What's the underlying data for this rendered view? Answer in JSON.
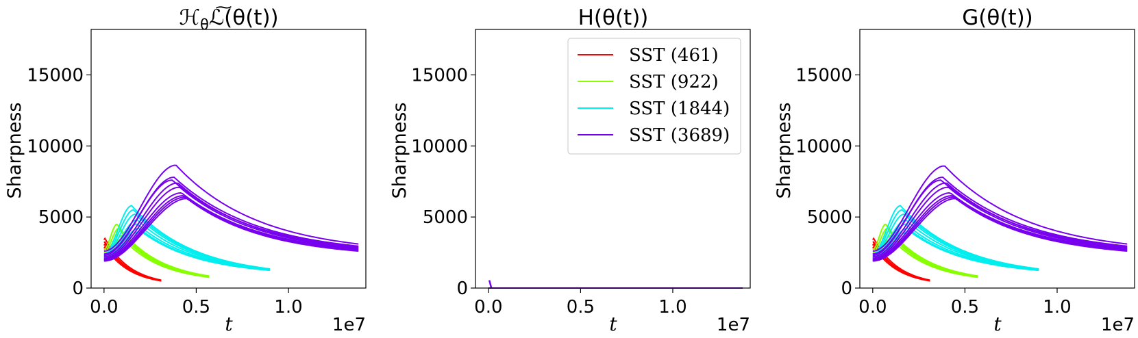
{
  "colors": {
    "SST (461)": "#ff0000",
    "SST (922)": "#88ff00",
    "SST (1844)": "#00eeee",
    "SST (3689)": "#7700ee"
  },
  "chart_data": [
    {
      "type": "line",
      "title": "ℋθℒ̃(θ(t))",
      "title_parts": {
        "H": "ℋ",
        "sub": "θ",
        "L": "ℒ",
        "tilde": "~",
        "rest": "(θ(t))"
      },
      "xlabel": "t",
      "ylabel": "Sharpness",
      "x_offset_text": "1e7",
      "xlim": [
        -0.07,
        1.42
      ],
      "ylim": [
        0,
        18200
      ],
      "xticks": [
        0.0,
        0.5,
        1.0
      ],
      "xtick_labels": [
        "0.0",
        "0.5",
        "1.0"
      ],
      "yticks": [
        0,
        5000,
        10000,
        15000
      ],
      "ytick_labels": [
        "0",
        "5000",
        "10000",
        "15000"
      ],
      "legend": false,
      "series": [
        {
          "name": "SST (461)",
          "t_end": 0.31,
          "final": 550,
          "runs": [
            {
              "start": 3400,
              "peak": 3500,
              "peak_t": 0.005,
              "final": 560
            },
            {
              "start": 3200,
              "peak": 3250,
              "peak_t": 0.005,
              "final": 520
            },
            {
              "start": 3000,
              "peak": 3100,
              "peak_t": 0.005,
              "final": 540
            },
            {
              "start": 2800,
              "peak": 2900,
              "peak_t": 0.005,
              "final": 500
            }
          ]
        },
        {
          "name": "SST (922)",
          "t_end": 0.57,
          "runs": [
            {
              "start": 2700,
              "peak": 4500,
              "peak_t": 0.07,
              "final": 850
            },
            {
              "start": 2500,
              "peak": 4200,
              "peak_t": 0.08,
              "final": 820
            },
            {
              "start": 2300,
              "peak": 4000,
              "peak_t": 0.09,
              "final": 800
            },
            {
              "start": 2200,
              "peak": 3700,
              "peak_t": 0.1,
              "final": 780
            },
            {
              "start": 2100,
              "peak": 3500,
              "peak_t": 0.1,
              "final": 760
            }
          ]
        },
        {
          "name": "SST (1844)",
          "t_end": 0.9,
          "runs": [
            {
              "start": 2400,
              "peak": 5800,
              "peak_t": 0.15,
              "final": 1350
            },
            {
              "start": 2300,
              "peak": 5500,
              "peak_t": 0.16,
              "final": 1330
            },
            {
              "start": 2200,
              "peak": 5200,
              "peak_t": 0.17,
              "final": 1300
            },
            {
              "start": 2100,
              "peak": 4800,
              "peak_t": 0.18,
              "final": 1300
            },
            {
              "start": 2000,
              "peak": 4500,
              "peak_t": 0.18,
              "final": 1280
            },
            {
              "start": 1950,
              "peak": 4200,
              "peak_t": 0.19,
              "final": 1250
            },
            {
              "start": 1900,
              "peak": 4000,
              "peak_t": 0.2,
              "final": 1250
            }
          ]
        },
        {
          "name": "SST (3689)",
          "t_end": 1.38,
          "runs": [
            {
              "start": 2600,
              "peak": 8650,
              "peak_t": 0.39,
              "final": 3100
            },
            {
              "start": 2400,
              "peak": 7800,
              "peak_t": 0.38,
              "final": 2950
            },
            {
              "start": 2300,
              "peak": 7600,
              "peak_t": 0.37,
              "final": 2900
            },
            {
              "start": 2200,
              "peak": 7400,
              "peak_t": 0.4,
              "final": 2850
            },
            {
              "start": 2100,
              "peak": 7100,
              "peak_t": 0.41,
              "final": 2800
            },
            {
              "start": 2050,
              "peak": 6700,
              "peak_t": 0.42,
              "final": 2750
            },
            {
              "start": 2000,
              "peak": 6500,
              "peak_t": 0.43,
              "final": 2700
            },
            {
              "start": 1950,
              "peak": 6400,
              "peak_t": 0.44,
              "final": 2650
            },
            {
              "start": 1900,
              "peak": 6300,
              "peak_t": 0.45,
              "final": 2600
            }
          ]
        }
      ]
    },
    {
      "type": "line",
      "title": "H(θ(t))",
      "xlabel": "t",
      "ylabel": "Sharpness",
      "x_offset_text": "1e7",
      "xlim": [
        -0.07,
        1.42
      ],
      "ylim": [
        0,
        18200
      ],
      "xticks": [
        0.0,
        0.5,
        1.0
      ],
      "xtick_labels": [
        "0.0",
        "0.5",
        "1.0"
      ],
      "yticks": [
        0,
        5000,
        10000,
        15000
      ],
      "ytick_labels": [
        "0",
        "5000",
        "10000",
        "15000"
      ],
      "legend": true,
      "legend_position": "top-right",
      "legend_entries": [
        "SST (461)",
        "SST (922)",
        "SST (1844)",
        "SST (3689)"
      ],
      "series": [
        {
          "name": "SST (461)",
          "t_end": 0.31,
          "spike": 0,
          "runs": [
            {
              "start": 0,
              "peak": 0,
              "peak_t": 0.0,
              "final": 0
            }
          ]
        },
        {
          "name": "SST (922)",
          "t_end": 0.57,
          "spike": 0,
          "runs": [
            {
              "start": 0,
              "peak": 0,
              "peak_t": 0.0,
              "final": 0
            }
          ]
        },
        {
          "name": "SST (1844)",
          "t_end": 0.9,
          "spike": 0,
          "runs": [
            {
              "start": 0,
              "peak": 0,
              "peak_t": 0.0,
              "final": 0
            }
          ]
        },
        {
          "name": "SST (3689)",
          "t_end": 1.38,
          "spike": 550,
          "runs": [
            {
              "start": 0,
              "peak": 0,
              "peak_t": 0.0,
              "final": 0
            }
          ]
        }
      ]
    },
    {
      "type": "line",
      "title": "G(θ(t))",
      "xlabel": "t",
      "ylabel": "Sharpness",
      "x_offset_text": "1e7",
      "xlim": [
        -0.07,
        1.42
      ],
      "ylim": [
        0,
        18200
      ],
      "xticks": [
        0.0,
        0.5,
        1.0
      ],
      "xtick_labels": [
        "0.0",
        "0.5",
        "1.0"
      ],
      "yticks": [
        0,
        5000,
        10000,
        15000
      ],
      "ytick_labels": [
        "0",
        "5000",
        "10000",
        "15000"
      ],
      "legend": false,
      "series": [
        {
          "name": "SST (461)",
          "t_end": 0.31,
          "runs": [
            {
              "start": 3400,
              "peak": 3500,
              "peak_t": 0.005,
              "final": 560
            },
            {
              "start": 3200,
              "peak": 3250,
              "peak_t": 0.005,
              "final": 520
            },
            {
              "start": 3000,
              "peak": 3100,
              "peak_t": 0.005,
              "final": 540
            },
            {
              "start": 2800,
              "peak": 2900,
              "peak_t": 0.005,
              "final": 500
            }
          ]
        },
        {
          "name": "SST (922)",
          "t_end": 0.57,
          "runs": [
            {
              "start": 2700,
              "peak": 4500,
              "peak_t": 0.07,
              "final": 850
            },
            {
              "start": 2500,
              "peak": 4200,
              "peak_t": 0.08,
              "final": 820
            },
            {
              "start": 2300,
              "peak": 4000,
              "peak_t": 0.09,
              "final": 800
            },
            {
              "start": 2200,
              "peak": 3700,
              "peak_t": 0.1,
              "final": 780
            },
            {
              "start": 2100,
              "peak": 3500,
              "peak_t": 0.1,
              "final": 760
            }
          ]
        },
        {
          "name": "SST (1844)",
          "t_end": 0.9,
          "runs": [
            {
              "start": 2400,
              "peak": 5800,
              "peak_t": 0.15,
              "final": 1350
            },
            {
              "start": 2300,
              "peak": 5500,
              "peak_t": 0.16,
              "final": 1330
            },
            {
              "start": 2200,
              "peak": 5200,
              "peak_t": 0.17,
              "final": 1300
            },
            {
              "start": 2100,
              "peak": 4800,
              "peak_t": 0.18,
              "final": 1300
            },
            {
              "start": 2000,
              "peak": 4500,
              "peak_t": 0.18,
              "final": 1280
            },
            {
              "start": 1950,
              "peak": 4200,
              "peak_t": 0.19,
              "final": 1250
            },
            {
              "start": 1900,
              "peak": 4000,
              "peak_t": 0.2,
              "final": 1250
            }
          ]
        },
        {
          "name": "SST (3689)",
          "t_end": 1.38,
          "runs": [
            {
              "start": 2600,
              "peak": 8600,
              "peak_t": 0.39,
              "final": 3100
            },
            {
              "start": 2400,
              "peak": 7800,
              "peak_t": 0.38,
              "final": 2950
            },
            {
              "start": 2300,
              "peak": 7600,
              "peak_t": 0.37,
              "final": 2900
            },
            {
              "start": 2200,
              "peak": 7400,
              "peak_t": 0.4,
              "final": 2850
            },
            {
              "start": 2100,
              "peak": 7100,
              "peak_t": 0.41,
              "final": 2800
            },
            {
              "start": 2050,
              "peak": 6700,
              "peak_t": 0.42,
              "final": 2750
            },
            {
              "start": 2000,
              "peak": 6500,
              "peak_t": 0.43,
              "final": 2700
            },
            {
              "start": 1950,
              "peak": 6400,
              "peak_t": 0.44,
              "final": 2650
            },
            {
              "start": 1900,
              "peak": 6300,
              "peak_t": 0.45,
              "final": 2600
            }
          ]
        }
      ]
    }
  ]
}
